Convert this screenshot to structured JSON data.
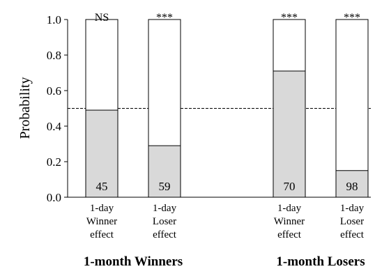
{
  "chart_data": {
    "type": "bar",
    "ylabel": "Probability",
    "ylim": [
      0,
      1.0
    ],
    "yticks": [
      "0.0",
      "0.2",
      "0.4",
      "0.6",
      "0.8",
      "1.0"
    ],
    "reference_line": 0.5,
    "colors": {
      "filled": "#d9d9d9",
      "empty": "#ffffff",
      "stroke": "#000000"
    },
    "bars": [
      {
        "label_lines": [
          "1-day",
          "Winner",
          "effect"
        ],
        "value": 0.49,
        "n": "45",
        "significance": "NS"
      },
      {
        "label_lines": [
          "1-day",
          "Loser",
          "effect"
        ],
        "value": 0.29,
        "n": "59",
        "significance": "***"
      },
      {
        "label_lines": [
          "1-day",
          "Winner",
          "effect"
        ],
        "value": 0.71,
        "n": "70",
        "significance": "***"
      },
      {
        "label_lines": [
          "1-day",
          "Loser",
          "effect"
        ],
        "value": 0.15,
        "n": "98",
        "significance": "***"
      }
    ],
    "groups": [
      {
        "label": "1-month Winners",
        "bars": [
          0,
          1
        ]
      },
      {
        "label": "1-month Losers",
        "bars": [
          2,
          3
        ]
      }
    ]
  }
}
